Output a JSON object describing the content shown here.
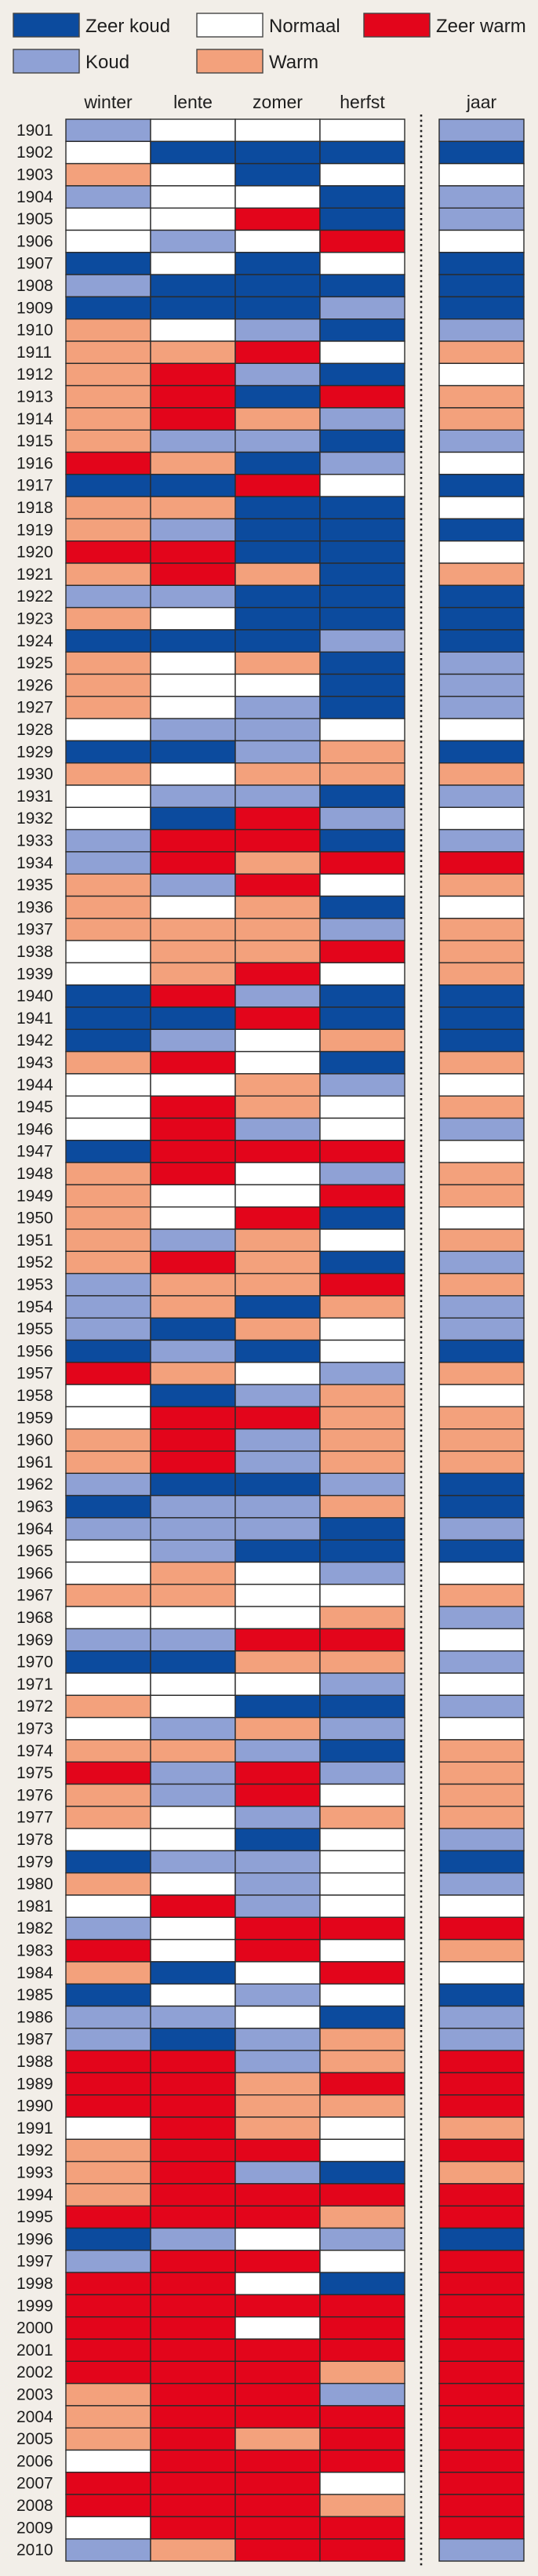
{
  "chart_data": {
    "type": "heatmap",
    "legend_position": "top",
    "legend": [
      {
        "label": "Zeer koud",
        "color": "#0c4b9e"
      },
      {
        "label": "Koud",
        "color": "#8fa1d5"
      },
      {
        "label": "Normaal",
        "color": "#ffffff"
      },
      {
        "label": "Warm",
        "color": "#f3a17c"
      },
      {
        "label": "Zeer warm",
        "color": "#e3051b"
      }
    ],
    "columns": [
      "winter",
      "lente",
      "zomer",
      "herfst",
      "jaar"
    ],
    "rows": [
      {
        "year": 1901,
        "values": [
          "Koud",
          "Normaal",
          "Normaal",
          "Normaal",
          "Koud"
        ]
      },
      {
        "year": 1902,
        "values": [
          "Normaal",
          "Zeer koud",
          "Zeer koud",
          "Zeer koud",
          "Zeer koud"
        ]
      },
      {
        "year": 1903,
        "values": [
          "Warm",
          "Normaal",
          "Zeer koud",
          "Normaal",
          "Normaal"
        ]
      },
      {
        "year": 1904,
        "values": [
          "Koud",
          "Normaal",
          "Normaal",
          "Zeer koud",
          "Koud"
        ]
      },
      {
        "year": 1905,
        "values": [
          "Normaal",
          "Normaal",
          "Zeer warm",
          "Zeer koud",
          "Koud"
        ]
      },
      {
        "year": 1906,
        "values": [
          "Normaal",
          "Koud",
          "Normaal",
          "Zeer warm",
          "Normaal"
        ]
      },
      {
        "year": 1907,
        "values": [
          "Zeer koud",
          "Normaal",
          "Zeer koud",
          "Normaal",
          "Zeer koud"
        ]
      },
      {
        "year": 1908,
        "values": [
          "Koud",
          "Zeer koud",
          "Zeer koud",
          "Zeer koud",
          "Zeer koud"
        ]
      },
      {
        "year": 1909,
        "values": [
          "Zeer koud",
          "Zeer koud",
          "Zeer koud",
          "Koud",
          "Zeer koud"
        ]
      },
      {
        "year": 1910,
        "values": [
          "Warm",
          "Normaal",
          "Koud",
          "Zeer koud",
          "Koud"
        ]
      },
      {
        "year": 1911,
        "values": [
          "Warm",
          "Warm",
          "Zeer warm",
          "Normaal",
          "Warm"
        ]
      },
      {
        "year": 1912,
        "values": [
          "Warm",
          "Zeer warm",
          "Koud",
          "Zeer koud",
          "Normaal"
        ]
      },
      {
        "year": 1913,
        "values": [
          "Warm",
          "Zeer warm",
          "Zeer koud",
          "Zeer warm",
          "Warm"
        ]
      },
      {
        "year": 1914,
        "values": [
          "Warm",
          "Zeer warm",
          "Warm",
          "Koud",
          "Warm"
        ]
      },
      {
        "year": 1915,
        "values": [
          "Warm",
          "Koud",
          "Koud",
          "Zeer koud",
          "Koud"
        ]
      },
      {
        "year": 1916,
        "values": [
          "Zeer warm",
          "Warm",
          "Zeer koud",
          "Koud",
          "Normaal"
        ]
      },
      {
        "year": 1917,
        "values": [
          "Zeer koud",
          "Zeer koud",
          "Zeer warm",
          "Normaal",
          "Zeer koud"
        ]
      },
      {
        "year": 1918,
        "values": [
          "Warm",
          "Warm",
          "Zeer koud",
          "Zeer koud",
          "Normaal"
        ]
      },
      {
        "year": 1919,
        "values": [
          "Warm",
          "Koud",
          "Zeer koud",
          "Zeer koud",
          "Zeer koud"
        ]
      },
      {
        "year": 1920,
        "values": [
          "Zeer warm",
          "Zeer warm",
          "Zeer koud",
          "Zeer koud",
          "Normaal"
        ]
      },
      {
        "year": 1921,
        "values": [
          "Warm",
          "Zeer warm",
          "Warm",
          "Zeer koud",
          "Warm"
        ]
      },
      {
        "year": 1922,
        "values": [
          "Koud",
          "Koud",
          "Zeer koud",
          "Zeer koud",
          "Zeer koud"
        ]
      },
      {
        "year": 1923,
        "values": [
          "Warm",
          "Normaal",
          "Zeer koud",
          "Zeer koud",
          "Zeer koud"
        ]
      },
      {
        "year": 1924,
        "values": [
          "Zeer koud",
          "Zeer koud",
          "Zeer koud",
          "Koud",
          "Zeer koud"
        ]
      },
      {
        "year": 1925,
        "values": [
          "Warm",
          "Normaal",
          "Warm",
          "Zeer koud",
          "Koud"
        ]
      },
      {
        "year": 1926,
        "values": [
          "Warm",
          "Normaal",
          "Normaal",
          "Zeer koud",
          "Koud"
        ]
      },
      {
        "year": 1927,
        "values": [
          "Warm",
          "Normaal",
          "Koud",
          "Zeer koud",
          "Koud"
        ]
      },
      {
        "year": 1928,
        "values": [
          "Normaal",
          "Koud",
          "Koud",
          "Normaal",
          "Normaal"
        ]
      },
      {
        "year": 1929,
        "values": [
          "Zeer koud",
          "Zeer koud",
          "Koud",
          "Warm",
          "Zeer koud"
        ]
      },
      {
        "year": 1930,
        "values": [
          "Warm",
          "Normaal",
          "Warm",
          "Warm",
          "Warm"
        ]
      },
      {
        "year": 1931,
        "values": [
          "Normaal",
          "Koud",
          "Koud",
          "Zeer koud",
          "Koud"
        ]
      },
      {
        "year": 1932,
        "values": [
          "Normaal",
          "Zeer koud",
          "Zeer warm",
          "Koud",
          "Normaal"
        ]
      },
      {
        "year": 1933,
        "values": [
          "Koud",
          "Zeer warm",
          "Zeer warm",
          "Zeer koud",
          "Koud"
        ]
      },
      {
        "year": 1934,
        "values": [
          "Koud",
          "Zeer warm",
          "Warm",
          "Zeer warm",
          "Zeer warm"
        ]
      },
      {
        "year": 1935,
        "values": [
          "Warm",
          "Koud",
          "Zeer warm",
          "Normaal",
          "Warm"
        ]
      },
      {
        "year": 1936,
        "values": [
          "Warm",
          "Normaal",
          "Warm",
          "Zeer koud",
          "Normaal"
        ]
      },
      {
        "year": 1937,
        "values": [
          "Warm",
          "Warm",
          "Warm",
          "Koud",
          "Warm"
        ]
      },
      {
        "year": 1938,
        "values": [
          "Normaal",
          "Warm",
          "Warm",
          "Zeer warm",
          "Warm"
        ]
      },
      {
        "year": 1939,
        "values": [
          "Normaal",
          "Warm",
          "Zeer warm",
          "Normaal",
          "Warm"
        ]
      },
      {
        "year": 1940,
        "values": [
          "Zeer koud",
          "Zeer warm",
          "Koud",
          "Zeer koud",
          "Zeer koud"
        ]
      },
      {
        "year": 1941,
        "values": [
          "Zeer koud",
          "Zeer koud",
          "Zeer warm",
          "Zeer koud",
          "Zeer koud"
        ]
      },
      {
        "year": 1942,
        "values": [
          "Zeer koud",
          "Koud",
          "Normaal",
          "Warm",
          "Zeer koud"
        ]
      },
      {
        "year": 1943,
        "values": [
          "Warm",
          "Zeer warm",
          "Normaal",
          "Zeer koud",
          "Warm"
        ]
      },
      {
        "year": 1944,
        "values": [
          "Normaal",
          "Normaal",
          "Warm",
          "Koud",
          "Normaal"
        ]
      },
      {
        "year": 1945,
        "values": [
          "Normaal",
          "Zeer warm",
          "Warm",
          "Normaal",
          "Warm"
        ]
      },
      {
        "year": 1946,
        "values": [
          "Normaal",
          "Zeer warm",
          "Koud",
          "Normaal",
          "Koud"
        ]
      },
      {
        "year": 1947,
        "values": [
          "Zeer koud",
          "Zeer warm",
          "Zeer warm",
          "Zeer warm",
          "Normaal"
        ]
      },
      {
        "year": 1948,
        "values": [
          "Warm",
          "Zeer warm",
          "Normaal",
          "Koud",
          "Warm"
        ]
      },
      {
        "year": 1949,
        "values": [
          "Warm",
          "Normaal",
          "Normaal",
          "Zeer warm",
          "Warm"
        ]
      },
      {
        "year": 1950,
        "values": [
          "Warm",
          "Normaal",
          "Zeer warm",
          "Zeer koud",
          "Normaal"
        ]
      },
      {
        "year": 1951,
        "values": [
          "Warm",
          "Koud",
          "Warm",
          "Normaal",
          "Warm"
        ]
      },
      {
        "year": 1952,
        "values": [
          "Warm",
          "Zeer warm",
          "Warm",
          "Zeer koud",
          "Koud"
        ]
      },
      {
        "year": 1953,
        "values": [
          "Koud",
          "Warm",
          "Warm",
          "Zeer warm",
          "Warm"
        ]
      },
      {
        "year": 1954,
        "values": [
          "Koud",
          "Warm",
          "Zeer koud",
          "Warm",
          "Koud"
        ]
      },
      {
        "year": 1955,
        "values": [
          "Koud",
          "Zeer koud",
          "Warm",
          "Normaal",
          "Koud"
        ]
      },
      {
        "year": 1956,
        "values": [
          "Zeer koud",
          "Koud",
          "Zeer koud",
          "Normaal",
          "Zeer koud"
        ]
      },
      {
        "year": 1957,
        "values": [
          "Zeer warm",
          "Warm",
          "Normaal",
          "Koud",
          "Warm"
        ]
      },
      {
        "year": 1958,
        "values": [
          "Normaal",
          "Zeer koud",
          "Koud",
          "Warm",
          "Normaal"
        ]
      },
      {
        "year": 1959,
        "values": [
          "Normaal",
          "Zeer warm",
          "Zeer warm",
          "Warm",
          "Warm"
        ]
      },
      {
        "year": 1960,
        "values": [
          "Warm",
          "Zeer warm",
          "Koud",
          "Warm",
          "Warm"
        ]
      },
      {
        "year": 1961,
        "values": [
          "Warm",
          "Zeer warm",
          "Koud",
          "Warm",
          "Warm"
        ]
      },
      {
        "year": 1962,
        "values": [
          "Koud",
          "Zeer koud",
          "Zeer koud",
          "Koud",
          "Zeer koud"
        ]
      },
      {
        "year": 1963,
        "values": [
          "Zeer koud",
          "Koud",
          "Koud",
          "Warm",
          "Zeer koud"
        ]
      },
      {
        "year": 1964,
        "values": [
          "Koud",
          "Koud",
          "Koud",
          "Zeer koud",
          "Koud"
        ]
      },
      {
        "year": 1965,
        "values": [
          "Normaal",
          "Koud",
          "Zeer koud",
          "Zeer koud",
          "Zeer koud"
        ]
      },
      {
        "year": 1966,
        "values": [
          "Normaal",
          "Warm",
          "Normaal",
          "Koud",
          "Normaal"
        ]
      },
      {
        "year": 1967,
        "values": [
          "Warm",
          "Warm",
          "Normaal",
          "Normaal",
          "Warm"
        ]
      },
      {
        "year": 1968,
        "values": [
          "Normaal",
          "Normaal",
          "Normaal",
          "Warm",
          "Koud"
        ]
      },
      {
        "year": 1969,
        "values": [
          "Koud",
          "Koud",
          "Zeer warm",
          "Zeer warm",
          "Normaal"
        ]
      },
      {
        "year": 1970,
        "values": [
          "Zeer koud",
          "Zeer koud",
          "Warm",
          "Warm",
          "Koud"
        ]
      },
      {
        "year": 1971,
        "values": [
          "Normaal",
          "Normaal",
          "Normaal",
          "Koud",
          "Normaal"
        ]
      },
      {
        "year": 1972,
        "values": [
          "Warm",
          "Normaal",
          "Zeer koud",
          "Zeer koud",
          "Koud"
        ]
      },
      {
        "year": 1973,
        "values": [
          "Normaal",
          "Koud",
          "Warm",
          "Koud",
          "Normaal"
        ]
      },
      {
        "year": 1974,
        "values": [
          "Warm",
          "Warm",
          "Koud",
          "Zeer koud",
          "Warm"
        ]
      },
      {
        "year": 1975,
        "values": [
          "Zeer warm",
          "Koud",
          "Zeer warm",
          "Koud",
          "Warm"
        ]
      },
      {
        "year": 1976,
        "values": [
          "Warm",
          "Koud",
          "Zeer warm",
          "Normaal",
          "Warm"
        ]
      },
      {
        "year": 1977,
        "values": [
          "Warm",
          "Normaal",
          "Koud",
          "Warm",
          "Warm"
        ]
      },
      {
        "year": 1978,
        "values": [
          "Normaal",
          "Normaal",
          "Zeer koud",
          "Normaal",
          "Koud"
        ]
      },
      {
        "year": 1979,
        "values": [
          "Zeer koud",
          "Koud",
          "Koud",
          "Normaal",
          "Zeer koud"
        ]
      },
      {
        "year": 1980,
        "values": [
          "Warm",
          "Normaal",
          "Koud",
          "Normaal",
          "Koud"
        ]
      },
      {
        "year": 1981,
        "values": [
          "Normaal",
          "Zeer warm",
          "Koud",
          "Normaal",
          "Normaal"
        ]
      },
      {
        "year": 1982,
        "values": [
          "Koud",
          "Normaal",
          "Zeer warm",
          "Zeer warm",
          "Zeer warm"
        ]
      },
      {
        "year": 1983,
        "values": [
          "Zeer warm",
          "Normaal",
          "Zeer warm",
          "Normaal",
          "Warm"
        ]
      },
      {
        "year": 1984,
        "values": [
          "Warm",
          "Zeer koud",
          "Normaal",
          "Zeer warm",
          "Normaal"
        ]
      },
      {
        "year": 1985,
        "values": [
          "Zeer koud",
          "Normaal",
          "Koud",
          "Normaal",
          "Zeer koud"
        ]
      },
      {
        "year": 1986,
        "values": [
          "Koud",
          "Koud",
          "Normaal",
          "Zeer koud",
          "Koud"
        ]
      },
      {
        "year": 1987,
        "values": [
          "Koud",
          "Zeer koud",
          "Koud",
          "Warm",
          "Koud"
        ]
      },
      {
        "year": 1988,
        "values": [
          "Zeer warm",
          "Zeer warm",
          "Koud",
          "Warm",
          "Zeer warm"
        ]
      },
      {
        "year": 1989,
        "values": [
          "Zeer warm",
          "Zeer warm",
          "Warm",
          "Zeer warm",
          "Zeer warm"
        ]
      },
      {
        "year": 1990,
        "values": [
          "Zeer warm",
          "Zeer warm",
          "Warm",
          "Warm",
          "Zeer warm"
        ]
      },
      {
        "year": 1991,
        "values": [
          "Normaal",
          "Zeer warm",
          "Warm",
          "Normaal",
          "Warm"
        ]
      },
      {
        "year": 1992,
        "values": [
          "Warm",
          "Zeer warm",
          "Zeer warm",
          "Normaal",
          "Zeer warm"
        ]
      },
      {
        "year": 1993,
        "values": [
          "Warm",
          "Zeer warm",
          "Koud",
          "Zeer koud",
          "Warm"
        ]
      },
      {
        "year": 1994,
        "values": [
          "Warm",
          "Zeer warm",
          "Zeer warm",
          "Zeer warm",
          "Zeer warm"
        ]
      },
      {
        "year": 1995,
        "values": [
          "Zeer warm",
          "Zeer warm",
          "Zeer warm",
          "Warm",
          "Zeer warm"
        ]
      },
      {
        "year": 1996,
        "values": [
          "Zeer koud",
          "Koud",
          "Normaal",
          "Koud",
          "Zeer koud"
        ]
      },
      {
        "year": 1997,
        "values": [
          "Koud",
          "Zeer warm",
          "Zeer warm",
          "Normaal",
          "Zeer warm"
        ]
      },
      {
        "year": 1998,
        "values": [
          "Zeer warm",
          "Zeer warm",
          "Normaal",
          "Zeer koud",
          "Zeer warm"
        ]
      },
      {
        "year": 1999,
        "values": [
          "Zeer warm",
          "Zeer warm",
          "Zeer warm",
          "Zeer warm",
          "Zeer warm"
        ]
      },
      {
        "year": 2000,
        "values": [
          "Zeer warm",
          "Zeer warm",
          "Normaal",
          "Zeer warm",
          "Zeer warm"
        ]
      },
      {
        "year": 2001,
        "values": [
          "Zeer warm",
          "Zeer warm",
          "Zeer warm",
          "Zeer warm",
          "Zeer warm"
        ]
      },
      {
        "year": 2002,
        "values": [
          "Zeer warm",
          "Zeer warm",
          "Zeer warm",
          "Warm",
          "Zeer warm"
        ]
      },
      {
        "year": 2003,
        "values": [
          "Warm",
          "Zeer warm",
          "Zeer warm",
          "Koud",
          "Zeer warm"
        ]
      },
      {
        "year": 2004,
        "values": [
          "Warm",
          "Zeer warm",
          "Zeer warm",
          "Zeer warm",
          "Zeer warm"
        ]
      },
      {
        "year": 2005,
        "values": [
          "Warm",
          "Zeer warm",
          "Warm",
          "Zeer warm",
          "Zeer warm"
        ]
      },
      {
        "year": 2006,
        "values": [
          "Normaal",
          "Zeer warm",
          "Zeer warm",
          "Zeer warm",
          "Zeer warm"
        ]
      },
      {
        "year": 2007,
        "values": [
          "Zeer warm",
          "Zeer warm",
          "Zeer warm",
          "Normaal",
          "Zeer warm"
        ]
      },
      {
        "year": 2008,
        "values": [
          "Zeer warm",
          "Zeer warm",
          "Zeer warm",
          "Warm",
          "Zeer warm"
        ]
      },
      {
        "year": 2009,
        "values": [
          "Normaal",
          "Zeer warm",
          "Zeer warm",
          "Zeer warm",
          "Zeer warm"
        ]
      },
      {
        "year": 2010,
        "values": [
          "Koud",
          "Warm",
          "Zeer warm",
          "Zeer warm",
          "Koud"
        ]
      }
    ]
  }
}
